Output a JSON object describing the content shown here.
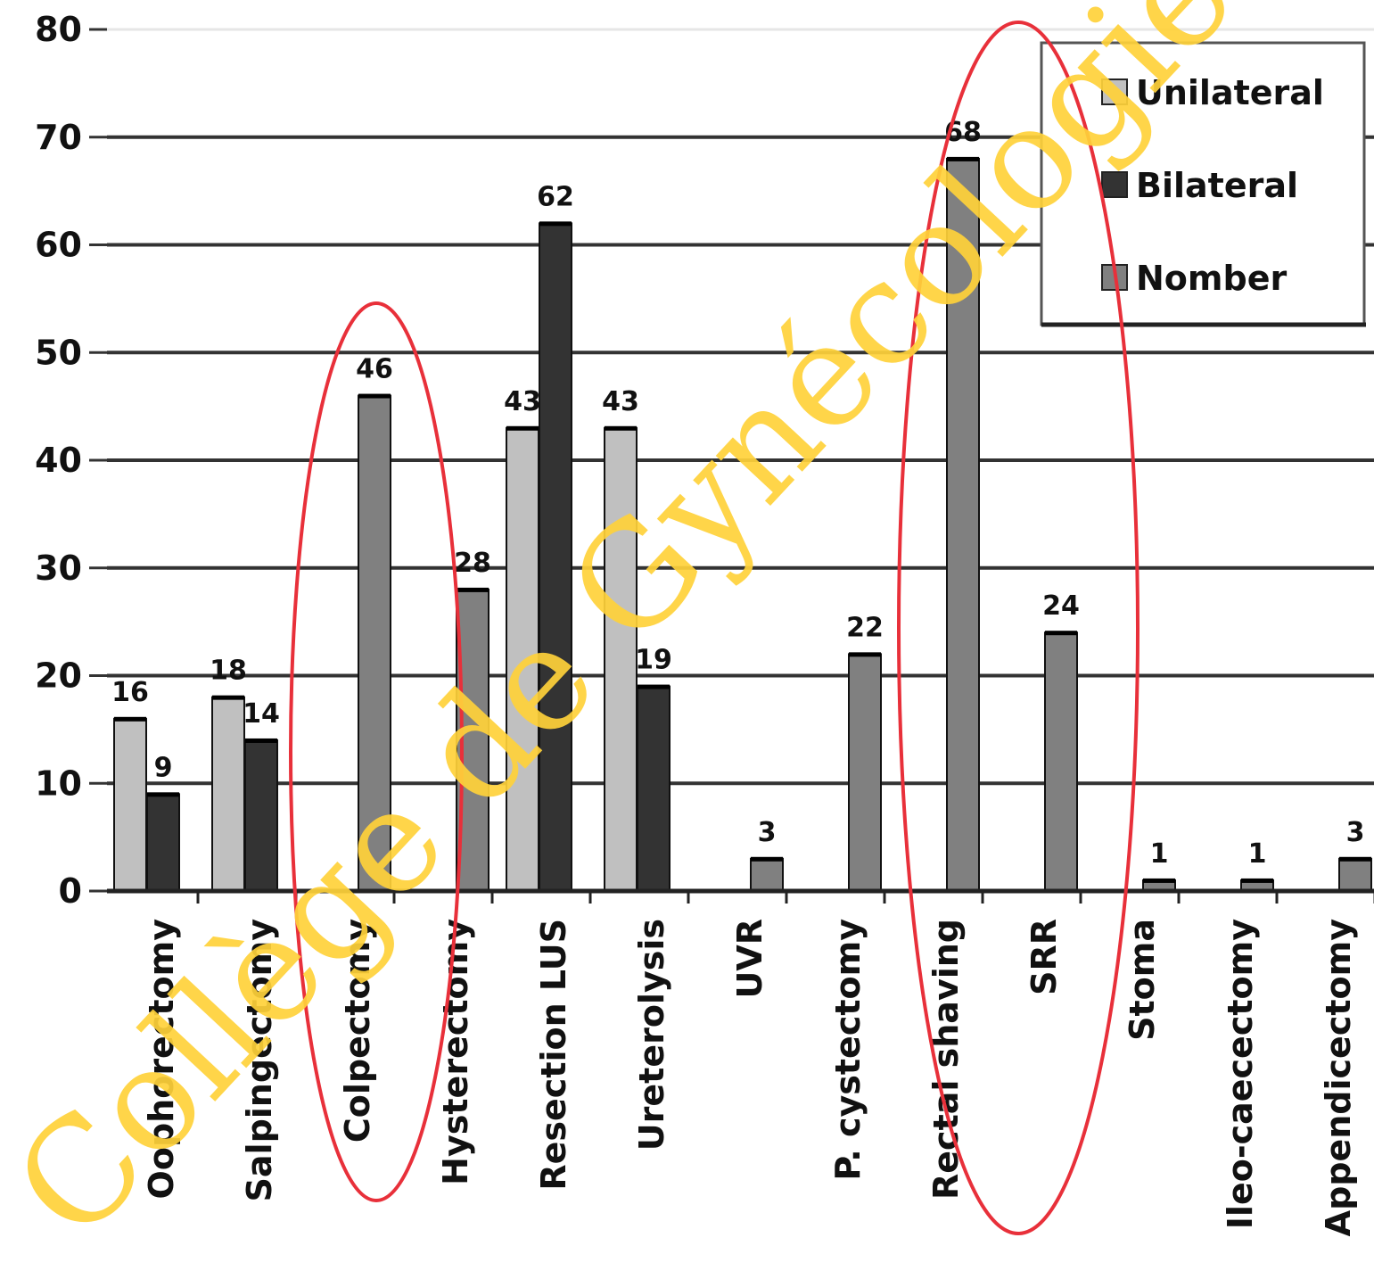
{
  "chart_data": {
    "type": "bar",
    "ylim": [
      0,
      80
    ],
    "yticks": [
      0,
      10,
      20,
      30,
      40,
      50,
      60,
      70,
      80
    ],
    "grid": true,
    "legend_position": "top-right",
    "categories": [
      "Oophorectomy",
      "Salpingectomy",
      "Colpectomy",
      "Hysterectomy",
      "Resection LUS",
      "Ureterolysis",
      "UVR",
      "P. cystectomy",
      "Rectal shaving",
      "SRR",
      "Stoma",
      "Ileo-caecectomy",
      "Appendicectomy"
    ],
    "series": [
      {
        "name": "Unilateral",
        "color": "#c0c0c0",
        "values": [
          16,
          18,
          null,
          null,
          43,
          43,
          null,
          null,
          null,
          null,
          null,
          null,
          null
        ]
      },
      {
        "name": "Bilateral",
        "color": "#333333",
        "values": [
          9,
          14,
          null,
          null,
          62,
          19,
          null,
          null,
          null,
          null,
          null,
          null,
          null
        ]
      },
      {
        "name": "Nomber",
        "color": "#808080",
        "values": [
          null,
          null,
          46,
          28,
          null,
          null,
          3,
          22,
          68,
          24,
          1,
          1,
          3
        ]
      }
    ],
    "data_labels": {
      "Unilateral": [
        "16",
        "18",
        null,
        null,
        "43",
        "43",
        null,
        null,
        null,
        null,
        null,
        null,
        null
      ],
      "Bilateral": [
        "9",
        "14",
        null,
        null,
        "62",
        "19",
        null,
        null,
        null,
        null,
        null,
        null,
        null
      ],
      "Nomber": [
        null,
        null,
        "46",
        "28",
        null,
        null,
        "3",
        "22",
        "68",
        "24",
        "1",
        "1",
        "3"
      ]
    }
  },
  "watermark": "Collège de Gynécologie",
  "annotation_color": "#e8303a"
}
